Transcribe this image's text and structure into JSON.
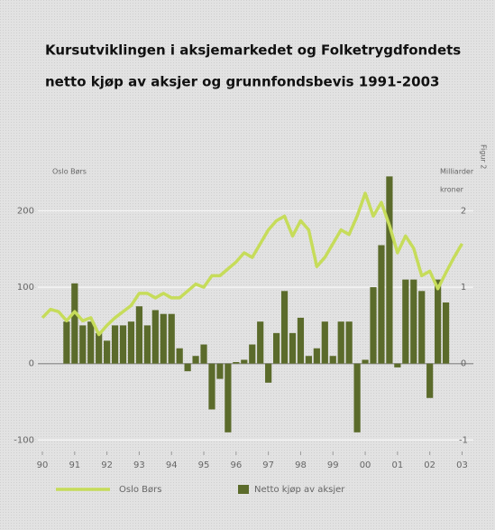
{
  "chart_data": {
    "type": "bar-line",
    "title": [
      "Kursutviklingen i aksjemarkedet og Folketrygdfondets",
      "netto kjøp av aksjer og grunnfondsbevis 1991-2003"
    ],
    "annotation": "Figur 2",
    "ylabel": "Oslo Børs",
    "y2label": [
      "Milliarder",
      "kroner"
    ],
    "xlim": [
      1989.86,
      2003.35
    ],
    "xticks": [
      {
        "value": 1990,
        "label": "90"
      },
      {
        "value": 1991,
        "label": "91"
      },
      {
        "value": 1992,
        "label": "92"
      },
      {
        "value": 1993,
        "label": "93"
      },
      {
        "value": 1994,
        "label": "94"
      },
      {
        "value": 1995,
        "label": "95"
      },
      {
        "value": 1996,
        "label": "96"
      },
      {
        "value": 1997,
        "label": "97"
      },
      {
        "value": 1998,
        "label": "98"
      },
      {
        "value": 1999,
        "label": "99"
      },
      {
        "value": 2000,
        "label": "00"
      },
      {
        "value": 2001,
        "label": "01"
      },
      {
        "value": 2002,
        "label": "02"
      },
      {
        "value": 2003,
        "label": "03"
      }
    ],
    "ylim": [
      -115,
      275
    ],
    "yticks": [
      -100,
      0,
      100,
      200
    ],
    "y2lim": [
      -1.15,
      2.75
    ],
    "y2ticks": [
      -1,
      0,
      1,
      2
    ],
    "grid": true,
    "series": [
      {
        "name": "Oslo Børs",
        "kind": "line",
        "color": "#c6dc5a",
        "x": [
          1990,
          1990.25,
          1990.5,
          1990.75,
          1991,
          1991.25,
          1991.5,
          1991.75,
          1992,
          1992.25,
          1992.5,
          1992.75,
          1993,
          1993.25,
          1993.5,
          1993.75,
          1994,
          1994.25,
          1994.5,
          1994.75,
          1995,
          1995.25,
          1995.5,
          1995.75,
          1996,
          1996.25,
          1996.5,
          1996.75,
          1997,
          1997.25,
          1997.5,
          1997.75,
          1998,
          1998.25,
          1998.5,
          1998.75,
          1999,
          1999.25,
          1999.5,
          1999.75,
          2000,
          2000.25,
          2000.5,
          2000.75,
          2001,
          2001.25,
          2001.5,
          2001.75,
          2002,
          2002.25,
          2002.5,
          2002.75,
          2003
        ],
        "values": [
          60,
          71,
          68,
          56,
          68,
          56,
          60,
          38,
          50,
          60,
          68,
          76,
          92,
          92,
          86,
          92,
          86,
          86,
          95,
          104,
          100,
          115,
          115,
          124,
          133,
          145,
          139,
          157,
          175,
          187,
          193,
          167,
          187,
          175,
          127,
          139,
          157,
          175,
          169,
          193,
          223,
          193,
          211,
          181,
          145,
          167,
          151,
          115,
          121,
          98,
          119,
          139,
          157
        ]
      },
      {
        "name": "Netto kjøp av aksjer",
        "kind": "bar",
        "axis": "y2",
        "color": "#5b6b2b",
        "x": [
          1990.75,
          1991,
          1991.25,
          1991.5,
          1991.75,
          1992,
          1992.25,
          1992.5,
          1992.75,
          1993,
          1993.25,
          1993.5,
          1993.75,
          1994,
          1994.25,
          1994.5,
          1994.75,
          1995,
          1995.25,
          1995.5,
          1995.75,
          1996,
          1996.25,
          1996.5,
          1996.75,
          1997,
          1997.25,
          1997.5,
          1997.75,
          1998,
          1998.25,
          1998.5,
          1998.75,
          1999,
          1999.25,
          1999.5,
          1999.75,
          2000,
          2000.25,
          2000.5,
          2000.75,
          2001,
          2001.25,
          2001.5,
          2001.75,
          2002,
          2002.25,
          2002.5
        ],
        "values": [
          0.55,
          1.05,
          0.5,
          0.55,
          0.4,
          0.3,
          0.5,
          0.5,
          0.55,
          0.75,
          0.5,
          0.7,
          0.65,
          0.65,
          0.2,
          -0.1,
          0.1,
          0.25,
          -0.6,
          -0.2,
          -0.9,
          0.02,
          0.05,
          0.25,
          0.55,
          -0.25,
          0.4,
          0.95,
          0.4,
          0.6,
          0.1,
          0.2,
          0.55,
          0.1,
          0.55,
          0.55,
          -0.9,
          0.05,
          1.0,
          1.55,
          2.45,
          -0.05,
          1.1,
          1.1,
          0.95,
          -0.45,
          1.1,
          0.8
        ]
      }
    ]
  }
}
